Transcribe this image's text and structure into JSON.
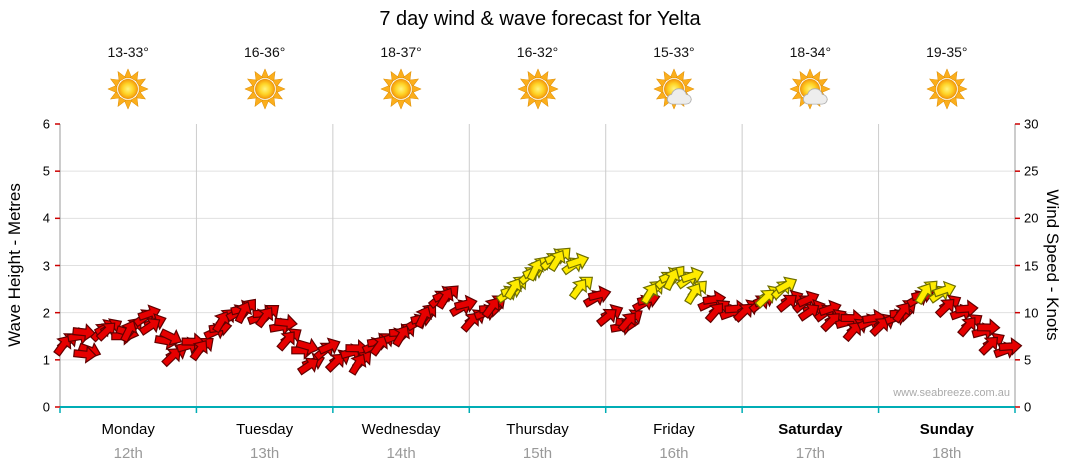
{
  "title": "7 day wind & wave forecast for Yelta",
  "watermark": "www.seabreeze.com.au",
  "days": [
    {
      "name": "Monday",
      "date": "12th",
      "temp": "13-33°",
      "icon": "sunny",
      "weekend": false
    },
    {
      "name": "Tuesday",
      "date": "13th",
      "temp": "16-36°",
      "icon": "sunny",
      "weekend": false
    },
    {
      "name": "Wednesday",
      "date": "14th",
      "temp": "18-37°",
      "icon": "sunny",
      "weekend": false
    },
    {
      "name": "Thursday",
      "date": "15th",
      "temp": "16-32°",
      "icon": "sunny",
      "weekend": false
    },
    {
      "name": "Friday",
      "date": "16th",
      "temp": "15-33°",
      "icon": "partly-cloudy",
      "weekend": false
    },
    {
      "name": "Saturday",
      "date": "17th",
      "temp": "18-34°",
      "icon": "partly-cloudy",
      "weekend": true
    },
    {
      "name": "Sunday",
      "date": "18th",
      "temp": "19-35°",
      "icon": "sunny",
      "weekend": true
    }
  ],
  "colors": {
    "arrow_red": "#E60000",
    "arrow_red_stroke": "#600000",
    "arrow_yellow": "#FFEB00",
    "arrow_yellow_stroke": "#6E6E00",
    "axis_bottom": "#00ADB5",
    "axis_side": "#999999",
    "grid": "#E0E0E0",
    "day_separator": "#CCCCCC",
    "tick_mark": "#CC0000",
    "date_text": "#999999",
    "watermark_text": "#AAAAAA"
  },
  "chart_data": {
    "type": "scatter",
    "subtype": "wind-arrows",
    "title": "7 day wind & wave forecast for Yelta",
    "y_left": {
      "label": "Wave Height - Metres",
      "min": 0,
      "max": 6,
      "ticks": [
        0,
        1,
        2,
        3,
        4,
        5,
        6
      ]
    },
    "y_right": {
      "label": "Wind Speed - Knots",
      "min": 0,
      "max": 30,
      "ticks": [
        0,
        5,
        10,
        15,
        20,
        25,
        30
      ]
    },
    "x_axis": {
      "unit": "days",
      "categories": [
        "Monday 12th",
        "Tuesday 13th",
        "Wednesday 14th",
        "Thursday 15th",
        "Friday 16th",
        "Saturday 17th",
        "Sunday 18th"
      ]
    },
    "point_format": [
      "x_in_days_0_to_7",
      "wind_speed_knots",
      "arrow_rotation_deg_0_is_east",
      "color_r_red_y_yellow"
    ],
    "points": [
      [
        0.06,
        7,
        -40,
        "r"
      ],
      [
        0.14,
        7.5,
        -10,
        "r"
      ],
      [
        0.22,
        6,
        20,
        "r"
      ],
      [
        0.3,
        8,
        -45,
        "r"
      ],
      [
        0.38,
        8.5,
        -30,
        "r"
      ],
      [
        0.46,
        7.5,
        0,
        "r"
      ],
      [
        0.54,
        8.5,
        -50,
        "r"
      ],
      [
        0.62,
        9.5,
        -35,
        "r"
      ],
      [
        0.7,
        9,
        -20,
        "r"
      ],
      [
        0.78,
        7,
        10,
        "r"
      ],
      [
        0.86,
        5.8,
        -30,
        "r"
      ],
      [
        0.94,
        6.5,
        -15,
        "r"
      ],
      [
        1.06,
        6.5,
        -40,
        "r"
      ],
      [
        1.14,
        8,
        -25,
        "r"
      ],
      [
        1.22,
        9.5,
        -45,
        "r"
      ],
      [
        1.3,
        10,
        -30,
        "r"
      ],
      [
        1.38,
        10.5,
        -50,
        "r"
      ],
      [
        1.46,
        9.5,
        -20,
        "r"
      ],
      [
        1.54,
        10,
        -40,
        "r"
      ],
      [
        1.62,
        8.5,
        -10,
        "r"
      ],
      [
        1.7,
        7.5,
        -35,
        "r"
      ],
      [
        1.78,
        6,
        0,
        "r"
      ],
      [
        1.86,
        4.8,
        -20,
        "r"
      ],
      [
        1.94,
        6,
        -40,
        "r"
      ],
      [
        2.06,
        5.2,
        -30,
        "r"
      ],
      [
        2.14,
        5.8,
        -15,
        "r"
      ],
      [
        2.22,
        5,
        -45,
        "r"
      ],
      [
        2.3,
        6.5,
        -25,
        "r"
      ],
      [
        2.38,
        7,
        -40,
        "r"
      ],
      [
        2.46,
        7.5,
        -20,
        "r"
      ],
      [
        2.54,
        8,
        -45,
        "r"
      ],
      [
        2.62,
        9,
        -30,
        "r"
      ],
      [
        2.7,
        10,
        -50,
        "r"
      ],
      [
        2.78,
        11.5,
        -40,
        "r"
      ],
      [
        2.86,
        12,
        -45,
        "r"
      ],
      [
        2.94,
        10.5,
        -30,
        "r"
      ],
      [
        3.05,
        9.5,
        -35,
        "r"
      ],
      [
        3.12,
        10,
        -20,
        "r"
      ],
      [
        3.2,
        11,
        -40,
        "r"
      ],
      [
        3.28,
        12,
        -35,
        "y"
      ],
      [
        3.36,
        13,
        -45,
        "y"
      ],
      [
        3.44,
        14,
        -40,
        "y"
      ],
      [
        3.52,
        15,
        -50,
        "y"
      ],
      [
        3.6,
        15.5,
        -40,
        "y"
      ],
      [
        3.68,
        16,
        -45,
        "y"
      ],
      [
        3.76,
        15,
        -35,
        "y"
      ],
      [
        3.84,
        13,
        -40,
        "y"
      ],
      [
        3.92,
        11.5,
        -30,
        "r"
      ],
      [
        4.05,
        10,
        -25,
        "r"
      ],
      [
        4.12,
        8.5,
        -10,
        "r"
      ],
      [
        4.2,
        9.5,
        -35,
        "r"
      ],
      [
        4.28,
        11,
        -30,
        "r"
      ],
      [
        4.36,
        12.5,
        -45,
        "y"
      ],
      [
        4.44,
        13.5,
        -40,
        "y"
      ],
      [
        4.52,
        14,
        -50,
        "y"
      ],
      [
        4.6,
        13.5,
        -35,
        "y"
      ],
      [
        4.68,
        12.5,
        -45,
        "y"
      ],
      [
        4.76,
        11,
        -25,
        "r"
      ],
      [
        4.84,
        10.5,
        -35,
        "r"
      ],
      [
        4.92,
        10,
        -20,
        "r"
      ],
      [
        5.05,
        10.5,
        -30,
        "r"
      ],
      [
        5.13,
        11,
        -40,
        "r"
      ],
      [
        5.21,
        12,
        -30,
        "y"
      ],
      [
        5.29,
        12.5,
        -45,
        "y"
      ],
      [
        5.37,
        11.5,
        -25,
        "r"
      ],
      [
        5.45,
        11,
        -40,
        "r"
      ],
      [
        5.53,
        10.5,
        -20,
        "r"
      ],
      [
        5.61,
        10,
        -35,
        "r"
      ],
      [
        5.69,
        9.5,
        -30,
        "r"
      ],
      [
        5.77,
        9,
        -15,
        "r"
      ],
      [
        5.85,
        8.5,
        -35,
        "r"
      ],
      [
        5.93,
        9,
        -25,
        "r"
      ],
      [
        6.05,
        9,
        -30,
        "r"
      ],
      [
        6.13,
        9.5,
        -20,
        "r"
      ],
      [
        6.21,
        10.5,
        -40,
        "r"
      ],
      [
        6.29,
        11.5,
        -30,
        "r"
      ],
      [
        6.37,
        12.5,
        -45,
        "y"
      ],
      [
        6.45,
        12,
        -35,
        "y"
      ],
      [
        6.53,
        11,
        -30,
        "r"
      ],
      [
        6.61,
        10,
        -20,
        "r"
      ],
      [
        6.69,
        9,
        -35,
        "r"
      ],
      [
        6.77,
        8,
        -15,
        "r"
      ],
      [
        6.85,
        7,
        -30,
        "r"
      ],
      [
        6.93,
        6,
        -20,
        "r"
      ]
    ]
  }
}
